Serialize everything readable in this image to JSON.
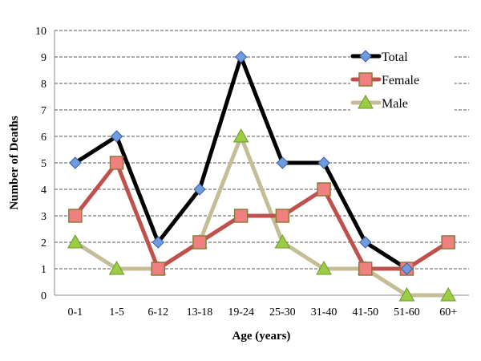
{
  "chart_data": {
    "type": "line",
    "xlabel": "Age (years)",
    "ylabel": "Number of Deaths",
    "ylim": [
      0,
      10
    ],
    "yticks": [
      0,
      1,
      2,
      3,
      4,
      5,
      6,
      7,
      8,
      9,
      10
    ],
    "grid": "horizontal dashed",
    "legend_position": "top-right",
    "categories": [
      "0-1",
      "1-5",
      "6-12",
      "13-18",
      "19-24",
      "25-30",
      "31-40",
      "41-50",
      "51-60",
      "60+"
    ],
    "series": [
      {
        "name": "Total",
        "values": [
          5,
          6,
          2,
          4,
          9,
          5,
          5,
          2,
          1,
          null
        ],
        "line_color": "#000000",
        "marker": "diamond",
        "marker_color": "#6f9be0"
      },
      {
        "name": "Female",
        "values": [
          3,
          5,
          1,
          2,
          3,
          3,
          4,
          1,
          1,
          2
        ],
        "line_color": "#c0504d",
        "marker": "square",
        "marker_color": "#f08080"
      },
      {
        "name": "Male",
        "values": [
          2,
          1,
          1,
          2,
          6,
          2,
          1,
          1,
          0,
          0
        ],
        "line_color": "#c4bd97",
        "marker": "triangle",
        "marker_color": "#9bcc44"
      }
    ]
  }
}
